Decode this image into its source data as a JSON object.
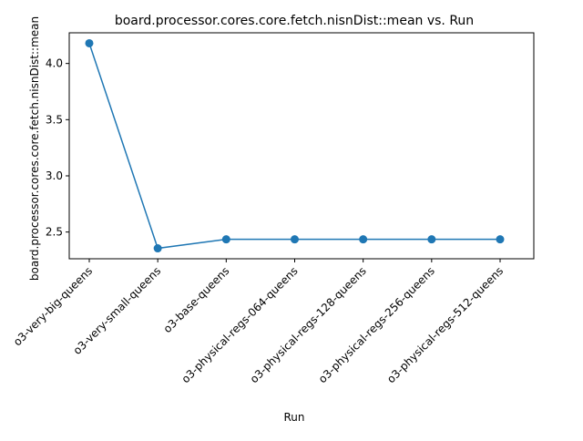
{
  "chart_data": {
    "type": "line",
    "title": "board.processor.cores.core.fetch.nisnDist::mean vs. Run",
    "xlabel": "Run",
    "ylabel": "board.processor.cores.core.fetch.nisnDist::mean",
    "categories": [
      "o3-very-big-queens",
      "o3-very-small-queens",
      "o3-base-queens",
      "o3-physical-regs-064-queens",
      "o3-physical-regs-128-queens",
      "o3-physical-regs-256-queens",
      "o3-physical-regs-512-queens"
    ],
    "series": [
      {
        "values": [
          4.18,
          2.355,
          2.435,
          2.435,
          2.435,
          2.435,
          2.435
        ]
      }
    ],
    "ylim": [
      2.262,
      4.273
    ],
    "yticks": [
      2.5,
      3.0,
      3.5,
      4.0
    ],
    "ytick_labels": [
      "2.5",
      "3.0",
      "3.5",
      "4.0"
    ],
    "grid": false,
    "legend": "none",
    "line_color": "#1f77b4",
    "marker": "circle"
  }
}
